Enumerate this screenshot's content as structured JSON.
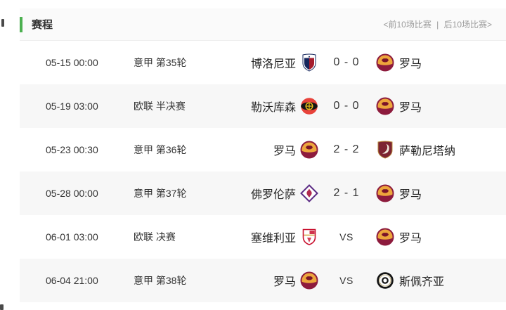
{
  "header": {
    "title": "赛程",
    "nav": {
      "prev_label": "<前10场比赛",
      "separator": "|",
      "next_label": "后10场比赛>"
    }
  },
  "colors": {
    "accent_green": "#4cb050",
    "header_bg": "#fafafa",
    "row_alt_bg": "#f7f7f7",
    "team_text": "#262626",
    "muted_text": "#9b9b9b"
  },
  "matches": [
    {
      "time": "05-15 00:00",
      "competition": "意甲 第35轮",
      "home": "博洛尼亚",
      "home_logo": "bologna-badge",
      "score": "0 - 0",
      "away_logo": "roma-badge",
      "away": "罗马"
    },
    {
      "time": "05-19 03:00",
      "competition": "欧联 半决赛",
      "home": "勒沃库森",
      "home_logo": "leverkusen-badge",
      "score": "0 - 0",
      "away_logo": "roma-badge",
      "away": "罗马"
    },
    {
      "time": "05-23 00:30",
      "competition": "意甲 第36轮",
      "home": "罗马",
      "home_logo": "roma-badge",
      "score": "2 - 2",
      "away_logo": "salernitana-badge",
      "away": "萨勒尼塔纳"
    },
    {
      "time": "05-28 00:00",
      "competition": "意甲 第37轮",
      "home": "佛罗伦萨",
      "home_logo": "fiorentina-badge",
      "score": "2 - 1",
      "away_logo": "roma-badge",
      "away": "罗马"
    },
    {
      "time": "06-01 03:00",
      "competition": "欧联 决赛",
      "home": "塞维利亚",
      "home_logo": "sevilla-badge",
      "score": "VS",
      "away_logo": "roma-badge",
      "away": "罗马"
    },
    {
      "time": "06-04 21:00",
      "competition": "意甲 第38轮",
      "home": "罗马",
      "home_logo": "roma-badge",
      "score": "VS",
      "away_logo": "spezia-badge",
      "away": "斯佩齐亚"
    }
  ]
}
